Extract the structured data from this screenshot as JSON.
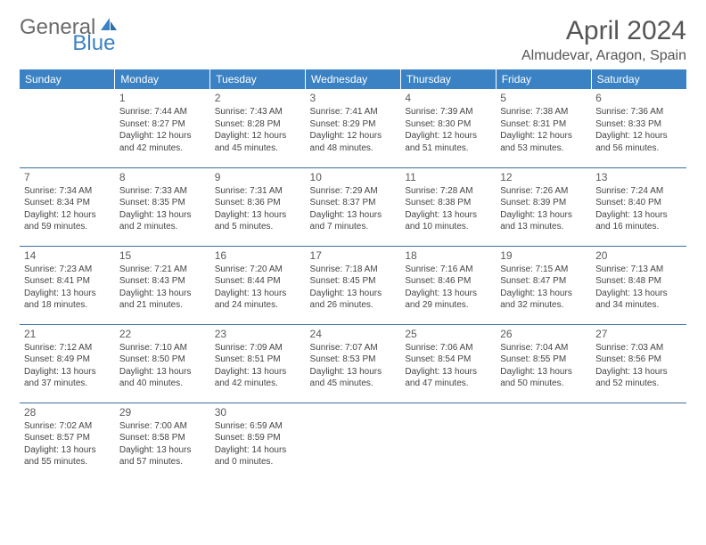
{
  "logo": {
    "text_gray": "General",
    "text_blue": "Blue"
  },
  "title": "April 2024",
  "location": "Almudevar, Aragon, Spain",
  "colors": {
    "header_bg": "#3b82c4",
    "header_text": "#ffffff",
    "row_border": "#3b6ea0",
    "body_text": "#444444",
    "title_text": "#555555",
    "logo_gray": "#6b6b6b",
    "logo_blue": "#3b82c4",
    "background": "#ffffff"
  },
  "typography": {
    "title_fontsize": 30,
    "location_fontsize": 16,
    "logo_fontsize": 24,
    "dayheader_fontsize": 12,
    "daynum_fontsize": 12,
    "cell_fontsize": 10
  },
  "layout": {
    "columns": 7,
    "rows": 5,
    "first_day_column_index": 1
  },
  "day_headers": [
    "Sunday",
    "Monday",
    "Tuesday",
    "Wednesday",
    "Thursday",
    "Friday",
    "Saturday"
  ],
  "days": [
    {
      "n": 1,
      "sunrise": "7:44 AM",
      "sunset": "8:27 PM",
      "daylight": "12 hours and 42 minutes."
    },
    {
      "n": 2,
      "sunrise": "7:43 AM",
      "sunset": "8:28 PM",
      "daylight": "12 hours and 45 minutes."
    },
    {
      "n": 3,
      "sunrise": "7:41 AM",
      "sunset": "8:29 PM",
      "daylight": "12 hours and 48 minutes."
    },
    {
      "n": 4,
      "sunrise": "7:39 AM",
      "sunset": "8:30 PM",
      "daylight": "12 hours and 51 minutes."
    },
    {
      "n": 5,
      "sunrise": "7:38 AM",
      "sunset": "8:31 PM",
      "daylight": "12 hours and 53 minutes."
    },
    {
      "n": 6,
      "sunrise": "7:36 AM",
      "sunset": "8:33 PM",
      "daylight": "12 hours and 56 minutes."
    },
    {
      "n": 7,
      "sunrise": "7:34 AM",
      "sunset": "8:34 PM",
      "daylight": "12 hours and 59 minutes."
    },
    {
      "n": 8,
      "sunrise": "7:33 AM",
      "sunset": "8:35 PM",
      "daylight": "13 hours and 2 minutes."
    },
    {
      "n": 9,
      "sunrise": "7:31 AM",
      "sunset": "8:36 PM",
      "daylight": "13 hours and 5 minutes."
    },
    {
      "n": 10,
      "sunrise": "7:29 AM",
      "sunset": "8:37 PM",
      "daylight": "13 hours and 7 minutes."
    },
    {
      "n": 11,
      "sunrise": "7:28 AM",
      "sunset": "8:38 PM",
      "daylight": "13 hours and 10 minutes."
    },
    {
      "n": 12,
      "sunrise": "7:26 AM",
      "sunset": "8:39 PM",
      "daylight": "13 hours and 13 minutes."
    },
    {
      "n": 13,
      "sunrise": "7:24 AM",
      "sunset": "8:40 PM",
      "daylight": "13 hours and 16 minutes."
    },
    {
      "n": 14,
      "sunrise": "7:23 AM",
      "sunset": "8:41 PM",
      "daylight": "13 hours and 18 minutes."
    },
    {
      "n": 15,
      "sunrise": "7:21 AM",
      "sunset": "8:43 PM",
      "daylight": "13 hours and 21 minutes."
    },
    {
      "n": 16,
      "sunrise": "7:20 AM",
      "sunset": "8:44 PM",
      "daylight": "13 hours and 24 minutes."
    },
    {
      "n": 17,
      "sunrise": "7:18 AM",
      "sunset": "8:45 PM",
      "daylight": "13 hours and 26 minutes."
    },
    {
      "n": 18,
      "sunrise": "7:16 AM",
      "sunset": "8:46 PM",
      "daylight": "13 hours and 29 minutes."
    },
    {
      "n": 19,
      "sunrise": "7:15 AM",
      "sunset": "8:47 PM",
      "daylight": "13 hours and 32 minutes."
    },
    {
      "n": 20,
      "sunrise": "7:13 AM",
      "sunset": "8:48 PM",
      "daylight": "13 hours and 34 minutes."
    },
    {
      "n": 21,
      "sunrise": "7:12 AM",
      "sunset": "8:49 PM",
      "daylight": "13 hours and 37 minutes."
    },
    {
      "n": 22,
      "sunrise": "7:10 AM",
      "sunset": "8:50 PM",
      "daylight": "13 hours and 40 minutes."
    },
    {
      "n": 23,
      "sunrise": "7:09 AM",
      "sunset": "8:51 PM",
      "daylight": "13 hours and 42 minutes."
    },
    {
      "n": 24,
      "sunrise": "7:07 AM",
      "sunset": "8:53 PM",
      "daylight": "13 hours and 45 minutes."
    },
    {
      "n": 25,
      "sunrise": "7:06 AM",
      "sunset": "8:54 PM",
      "daylight": "13 hours and 47 minutes."
    },
    {
      "n": 26,
      "sunrise": "7:04 AM",
      "sunset": "8:55 PM",
      "daylight": "13 hours and 50 minutes."
    },
    {
      "n": 27,
      "sunrise": "7:03 AM",
      "sunset": "8:56 PM",
      "daylight": "13 hours and 52 minutes."
    },
    {
      "n": 28,
      "sunrise": "7:02 AM",
      "sunset": "8:57 PM",
      "daylight": "13 hours and 55 minutes."
    },
    {
      "n": 29,
      "sunrise": "7:00 AM",
      "sunset": "8:58 PM",
      "daylight": "13 hours and 57 minutes."
    },
    {
      "n": 30,
      "sunrise": "6:59 AM",
      "sunset": "8:59 PM",
      "daylight": "14 hours and 0 minutes."
    }
  ],
  "labels": {
    "sunrise": "Sunrise:",
    "sunset": "Sunset:",
    "daylight": "Daylight:"
  }
}
